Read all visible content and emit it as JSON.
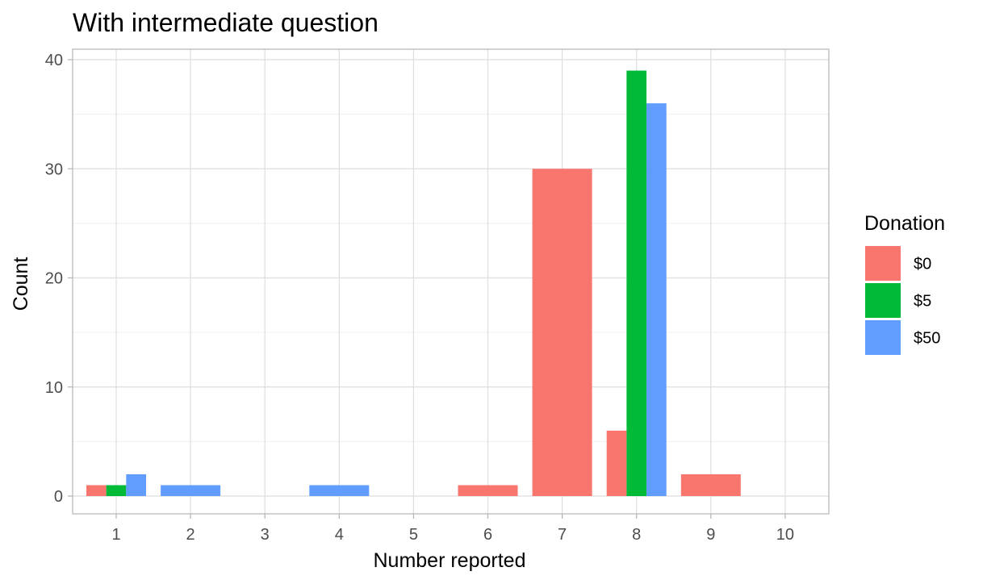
{
  "chart_data": {
    "type": "bar",
    "title": "With intermediate question",
    "xlabel": "Number reported",
    "ylabel": "Count",
    "categories": [
      "1",
      "2",
      "3",
      "4",
      "5",
      "6",
      "7",
      "8",
      "9",
      "10"
    ],
    "ylim": [
      0,
      40
    ],
    "yticks": [
      0,
      10,
      20,
      30,
      40
    ],
    "grid": true,
    "legend": {
      "title": "Donation",
      "placement": "right"
    },
    "series": [
      {
        "name": "$0",
        "color": "#F8766D",
        "values": [
          1,
          null,
          null,
          null,
          null,
          1,
          30,
          6,
          2,
          null
        ]
      },
      {
        "name": "$5",
        "color": "#00BA38",
        "values": [
          1,
          null,
          null,
          null,
          null,
          null,
          null,
          39,
          null,
          null
        ]
      },
      {
        "name": "$50",
        "color": "#619CFF",
        "values": [
          2,
          1,
          null,
          1,
          null,
          null,
          null,
          36,
          null,
          null
        ]
      }
    ]
  }
}
